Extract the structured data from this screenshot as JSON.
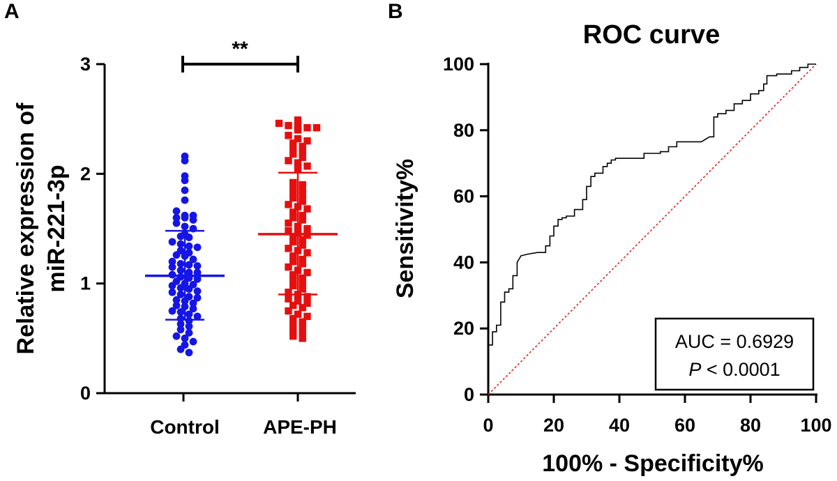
{
  "figure": {
    "panel_a_label": "A",
    "panel_b_label": "B"
  },
  "chart_data": [
    {
      "type": "scatter",
      "title": "",
      "ylabel_line1": "Relative expression of",
      "ylabel_line2": "miR-221-3p",
      "xlabel": "",
      "categories": [
        "Control",
        "APE-PH"
      ],
      "ylim": [
        0,
        3
      ],
      "yticks": [
        "0",
        "1",
        "2",
        "3"
      ],
      "significance": "**",
      "colors": {
        "Control": "#1515e6",
        "APE-PH": "#e60f0f"
      },
      "series": [
        {
          "name": "Control",
          "marker": "circle",
          "mean": 1.07,
          "sd_low": 0.67,
          "sd_high": 1.48,
          "values": [
            2.16,
            2.12,
            1.98,
            1.94,
            1.85,
            1.76,
            1.66,
            1.62,
            1.62,
            1.6,
            1.6,
            1.58,
            1.55,
            1.52,
            1.5,
            1.45,
            1.43,
            1.42,
            1.38,
            1.36,
            1.34,
            1.33,
            1.3,
            1.28,
            1.26,
            1.25,
            1.22,
            1.2,
            1.18,
            1.17,
            1.16,
            1.15,
            1.12,
            1.1,
            1.1,
            1.08,
            1.06,
            1.05,
            1.04,
            1.02,
            1.0,
            0.99,
            0.98,
            0.96,
            0.95,
            0.93,
            0.92,
            0.9,
            0.88,
            0.87,
            0.85,
            0.84,
            0.82,
            0.8,
            0.79,
            0.77,
            0.75,
            0.74,
            0.72,
            0.7,
            0.68,
            0.66,
            0.63,
            0.61,
            0.58,
            0.55,
            0.52,
            0.5,
            0.47,
            0.44,
            0.4,
            0.37
          ]
        },
        {
          "name": "APE-PH",
          "marker": "square",
          "mean": 1.45,
          "sd_low": 0.9,
          "sd_high": 2.01,
          "values": [
            2.49,
            2.46,
            2.44,
            2.43,
            2.42,
            2.42,
            2.4,
            2.35,
            2.32,
            2.3,
            2.28,
            2.25,
            2.22,
            2.2,
            2.18,
            2.15,
            2.12,
            2.1,
            2.07,
            2.05,
            1.92,
            1.9,
            1.88,
            1.85,
            1.82,
            1.8,
            1.78,
            1.75,
            1.72,
            1.7,
            1.68,
            1.65,
            1.62,
            1.6,
            1.58,
            1.55,
            1.52,
            1.5,
            1.48,
            1.46,
            1.44,
            1.42,
            1.4,
            1.38,
            1.35,
            1.32,
            1.3,
            1.28,
            1.25,
            1.22,
            1.2,
            1.18,
            1.15,
            1.12,
            1.1,
            1.08,
            1.05,
            1.02,
            1.0,
            0.98,
            0.95,
            0.92,
            0.9,
            0.88,
            0.86,
            0.84,
            0.82,
            0.8,
            0.78,
            0.75,
            0.72,
            0.7,
            0.68,
            0.65,
            0.62,
            0.6,
            0.58,
            0.55,
            0.52,
            0.5
          ]
        }
      ]
    },
    {
      "type": "line",
      "title": "ROC curve",
      "xlabel": "100% - Specificity%",
      "ylabel": "Sensitivity%",
      "xlim": [
        0,
        100
      ],
      "ylim": [
        0,
        100
      ],
      "xticks": [
        "0",
        "20",
        "40",
        "60",
        "80",
        "100"
      ],
      "yticks": [
        "0",
        "20",
        "40",
        "60",
        "80",
        "100"
      ],
      "auc_text": "AUC = 0.6929",
      "p_symbol": "P",
      "p_text": " < 0.0001",
      "colors": {
        "curve": "#000000",
        "reference": "#e0201e"
      },
      "series": [
        {
          "name": "ROC",
          "x": [
            0,
            0,
            1.3,
            1.3,
            2.5,
            2.5,
            3.8,
            3.8,
            5,
            5,
            6.3,
            6.3,
            7.5,
            7.5,
            8.8,
            8.8,
            10,
            12,
            15,
            17.5,
            17.5,
            18.8,
            18.8,
            20,
            20,
            21.3,
            21.3,
            22.5,
            22.5,
            23.8,
            23.8,
            26.3,
            26.3,
            28.8,
            28.8,
            30,
            30,
            31.3,
            31.3,
            32.5,
            32.5,
            35,
            35,
            36.3,
            36.3,
            37.5,
            37.5,
            38.8,
            38.8,
            41,
            45,
            47.5,
            47.5,
            52.5,
            52.5,
            55,
            55,
            57.5,
            57.5,
            65,
            67.5,
            68.8,
            68.8,
            70,
            70,
            72.5,
            72.5,
            75,
            75,
            77.5,
            77.5,
            80,
            80,
            82.5,
            82.5,
            84,
            84,
            85,
            85,
            88,
            88,
            90,
            92.5,
            92.5,
            95,
            95,
            97.5,
            97.5,
            100
          ],
          "y": [
            14,
            15,
            15,
            19,
            19,
            21,
            21,
            28,
            28,
            31,
            31,
            32,
            32,
            36,
            36,
            40,
            42,
            42.5,
            43,
            43,
            45,
            45,
            48,
            48,
            51,
            51,
            53,
            53,
            53.5,
            53.5,
            54,
            54,
            56,
            56,
            59,
            59,
            63,
            63,
            66,
            66,
            67,
            67,
            69,
            69,
            70,
            70,
            71,
            71,
            71.5,
            71.5,
            71.5,
            71.5,
            73,
            73,
            73.5,
            73.5,
            75,
            75,
            76.5,
            76.5,
            78,
            78,
            84,
            84,
            85,
            85,
            86,
            86,
            88,
            88,
            89,
            89,
            91,
            91,
            92,
            92,
            94,
            94,
            96.5,
            96.5,
            97,
            97,
            97,
            98,
            98,
            99,
            99,
            100,
            100
          ]
        }
      ]
    }
  ]
}
